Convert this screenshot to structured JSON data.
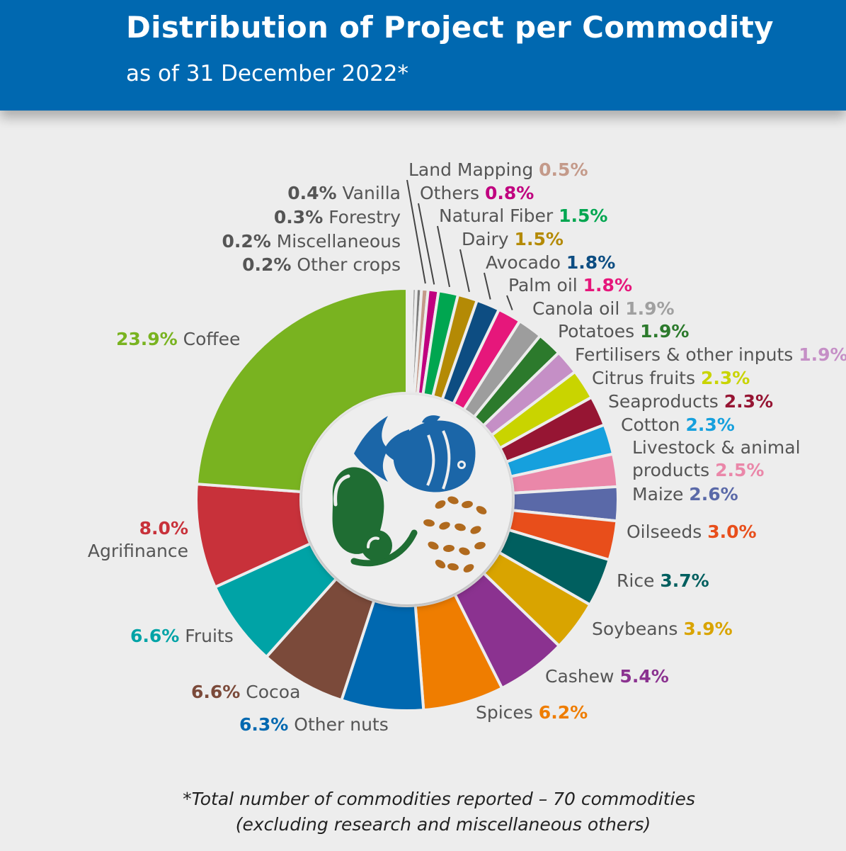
{
  "header": {
    "title": "Distribution of Project per Commodity",
    "subtitle": "as of 31 December 2022*"
  },
  "footnote": {
    "line1": "*Total number of commodities reported – 70 commodities",
    "line2": "(excluding research and miscellaneous others)"
  },
  "center_icons": [
    "fish-icon",
    "avocado-icon",
    "grains-icon"
  ],
  "chart_data": {
    "type": "pie",
    "variant": "donut",
    "title": "Distribution of Project per Commodity",
    "subtitle": "as of 31 December 2022*",
    "unit": "%",
    "slices": [
      {
        "name": "Other crops",
        "value": 0.2,
        "label": "0.2%",
        "color": "#c6c3c0",
        "label_color": "#555555"
      },
      {
        "name": "Miscellaneous",
        "value": 0.2,
        "label": "0.2%",
        "color": "#b9b4ad",
        "label_color": "#555555"
      },
      {
        "name": "Forestry",
        "value": 0.3,
        "label": "0.3%",
        "color": "#9a9a9a",
        "label_color": "#555555"
      },
      {
        "name": "Vanilla",
        "value": 0.4,
        "label": "0.4%",
        "color": "#7b7b7b",
        "label_color": "#555555"
      },
      {
        "name": "Land Mapping",
        "value": 0.5,
        "label": "0.5%",
        "color": "#c49a8a",
        "label_color": "#c49a8a"
      },
      {
        "name": "Others",
        "value": 0.8,
        "label": "0.8%",
        "color": "#c0007f",
        "label_color": "#c0007f"
      },
      {
        "name": "Natural Fiber",
        "value": 1.5,
        "label": "1.5%",
        "color": "#00a650",
        "label_color": "#00a650"
      },
      {
        "name": "Dairy",
        "value": 1.5,
        "label": "1.5%",
        "color": "#b48a05",
        "label_color": "#b48a05"
      },
      {
        "name": "Avocado",
        "value": 1.8,
        "label": "1.8%",
        "color": "#0d4d82",
        "label_color": "#0d4d82"
      },
      {
        "name": "Palm oil",
        "value": 1.8,
        "label": "1.8%",
        "color": "#e6177b",
        "label_color": "#e6177b"
      },
      {
        "name": "Canola oil",
        "value": 1.9,
        "label": "1.9%",
        "color": "#9d9d9d",
        "label_color": "#a0a0a0"
      },
      {
        "name": "Potatoes",
        "value": 1.9,
        "label": "1.9%",
        "color": "#2c7a2c",
        "label_color": "#2c7a2c"
      },
      {
        "name": "Fertilisers & other inputs",
        "value": 1.9,
        "label": "1.9%",
        "color": "#c58fc6",
        "label_color": "#c58fc6"
      },
      {
        "name": "Citrus fruits",
        "value": 2.3,
        "label": "2.3%",
        "color": "#c9d400",
        "label_color": "#c9d400"
      },
      {
        "name": "Seaproducts",
        "value": 2.3,
        "label": "2.3%",
        "color": "#961533",
        "label_color": "#961533"
      },
      {
        "name": "Cotton",
        "value": 2.3,
        "label": "2.3%",
        "color": "#16a0dd",
        "label_color": "#16a0dd"
      },
      {
        "name": "Livestock & animal products",
        "value": 2.5,
        "label": "2.5%",
        "color": "#ea87a9",
        "label_color": "#ea87a9"
      },
      {
        "name": "Maize",
        "value": 2.6,
        "label": "2.6%",
        "color": "#5a69a8",
        "label_color": "#5a69a8"
      },
      {
        "name": "Oilseeds",
        "value": 3.0,
        "label": "3.0%",
        "color": "#e84e1b",
        "label_color": "#e84e1b"
      },
      {
        "name": "Rice",
        "value": 3.7,
        "label": "3.7%",
        "color": "#005f5f",
        "label_color": "#005f5f"
      },
      {
        "name": "Soybeans",
        "value": 3.9,
        "label": "3.9%",
        "color": "#d9a400",
        "label_color": "#d9a400"
      },
      {
        "name": "Cashew",
        "value": 5.4,
        "label": "5.4%",
        "color": "#8b3290",
        "label_color": "#8b3290"
      },
      {
        "name": "Spices",
        "value": 6.2,
        "label": "6.2%",
        "color": "#ef7d00",
        "label_color": "#ef7d00"
      },
      {
        "name": "Other nuts",
        "value": 6.3,
        "label": "6.3%",
        "color": "#0068b0",
        "label_color": "#0068b0"
      },
      {
        "name": "Cocoa",
        "value": 6.6,
        "label": "6.6%",
        "color": "#7b4a3a",
        "label_color": "#7b4a3a"
      },
      {
        "name": "Fruits",
        "value": 6.6,
        "label": "6.6%",
        "color": "#00a3a6",
        "label_color": "#00a3a6"
      },
      {
        "name": "Agrifinance",
        "value": 8.0,
        "label": "8.0%",
        "color": "#c8313a",
        "label_color": "#c8313a"
      },
      {
        "name": "Coffee",
        "value": 23.9,
        "label": "23.9%",
        "color": "#79b320",
        "label_color": "#79b320"
      }
    ]
  }
}
